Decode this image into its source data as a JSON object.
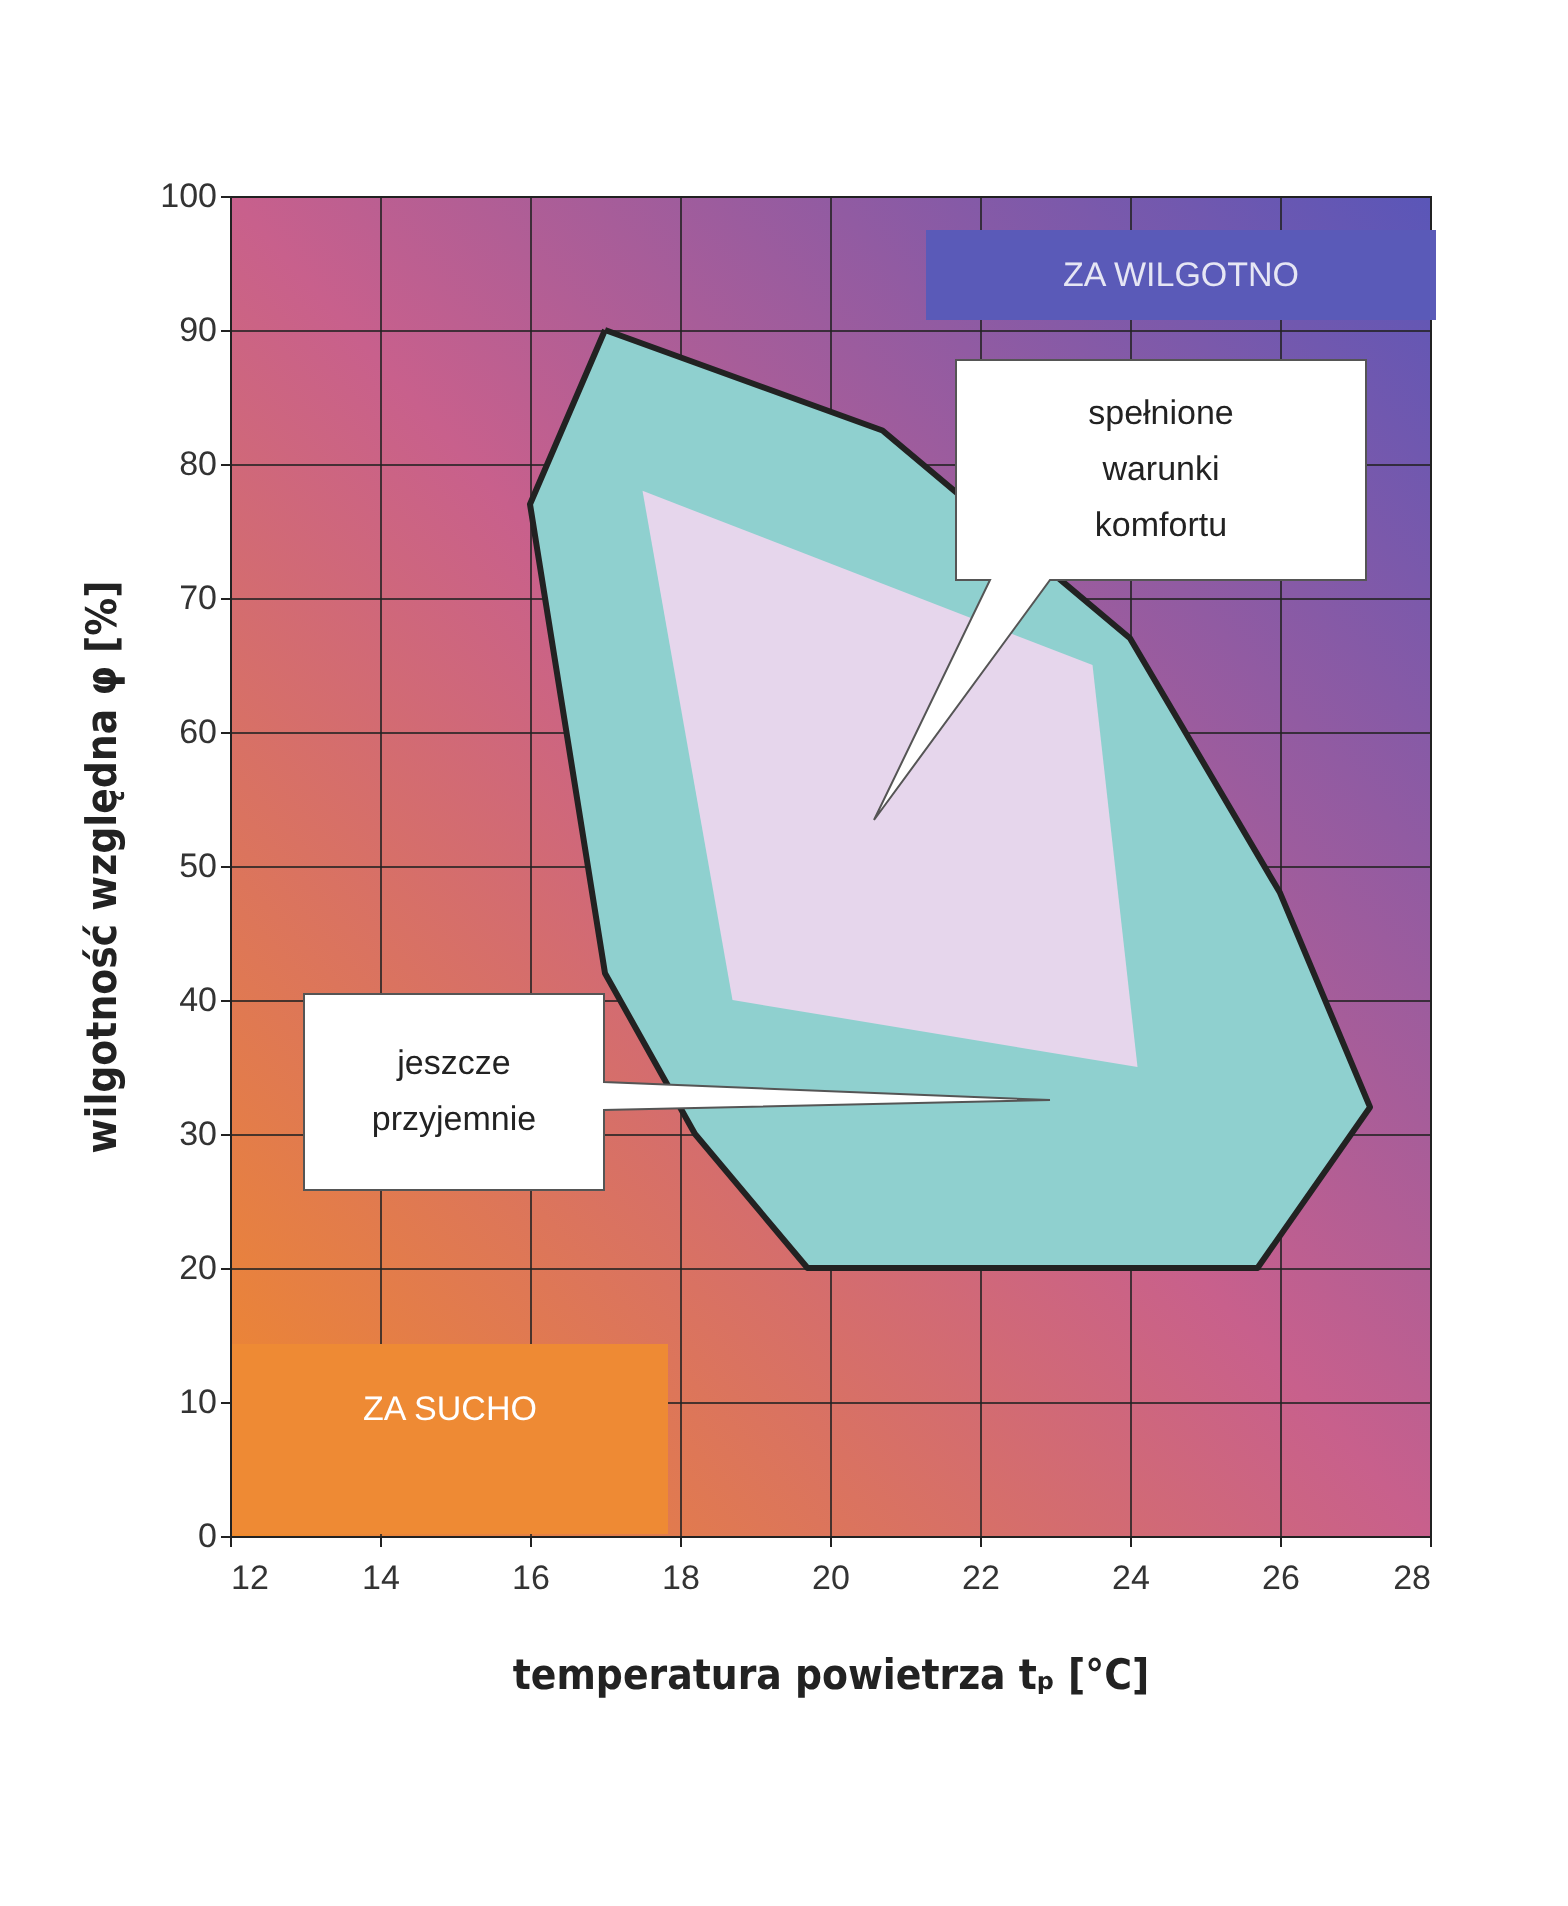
{
  "chart_data": {
    "type": "area",
    "xlabel": "temperatura powietrza tₚ [°C]",
    "ylabel": "wilgotność względna φ [%]",
    "xlim": [
      12,
      28
    ],
    "xticks": [
      12,
      14,
      16,
      18,
      20,
      22,
      24,
      26,
      28
    ],
    "ylim": [
      0,
      100
    ],
    "yticks": [
      0,
      10,
      20,
      30,
      40,
      50,
      60,
      70,
      80,
      90,
      100
    ],
    "grid": true,
    "series": [
      {
        "color": "#8fd0cf",
        "x": [
          17,
          20.7,
          24,
          26,
          27.2,
          25.7,
          19.7,
          18.2,
          17,
          16,
          17
        ],
        "values": [
          90,
          82.5,
          67,
          48,
          32,
          20,
          20,
          30,
          42,
          77,
          90
        ]
      },
      {
        "color": "#e6d6ec",
        "x": [
          17.5,
          23.5,
          24.1,
          18.7,
          17.5
        ],
        "values": [
          78,
          65,
          35,
          40,
          78
        ]
      }
    ],
    "annotations": [
      "ZA  WILGOTNO",
      "ZA  SUCHO",
      "spełnione\nwarunki\nkomfortu",
      "jeszcze\nprzyjemnie"
    ]
  }
}
